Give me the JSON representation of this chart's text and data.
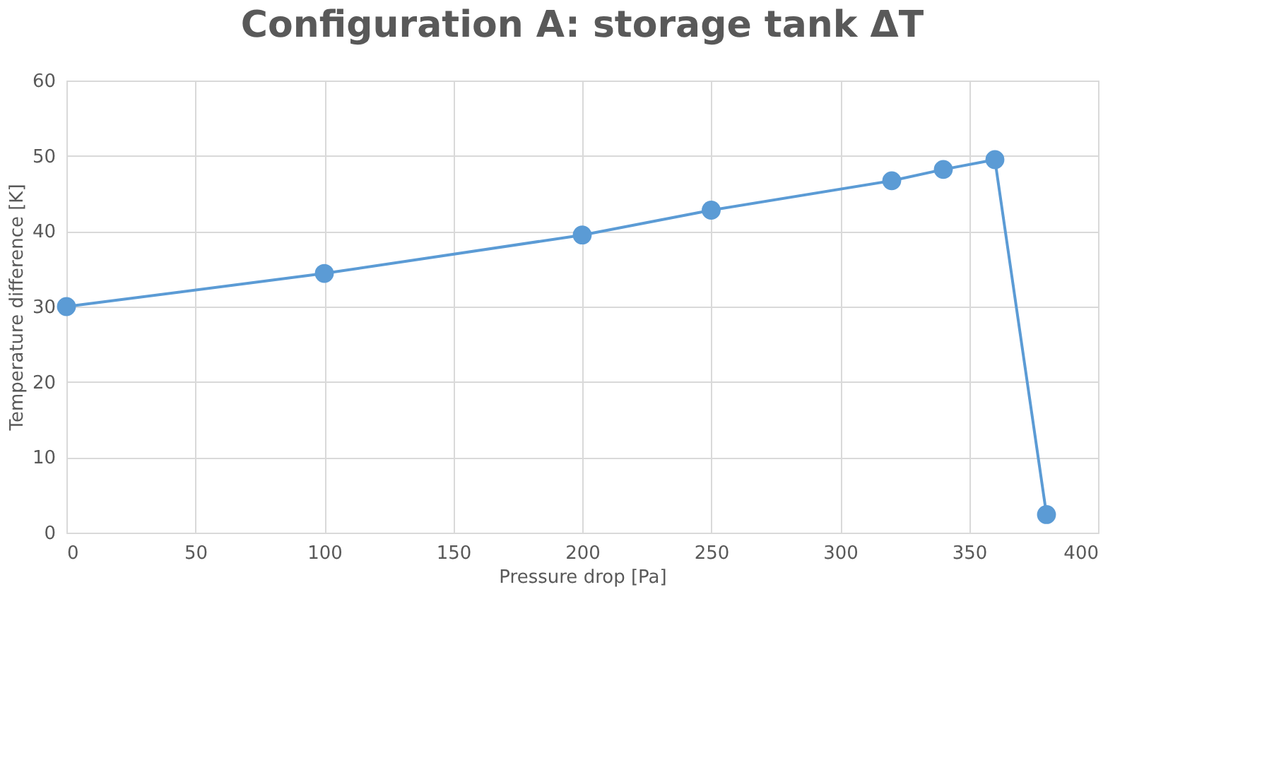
{
  "chart_data": {
    "type": "line",
    "title": "Configuration A: storage tank ΔT",
    "xlabel": "Pressure drop [Pa]",
    "ylabel": "Temperature difference [K]",
    "x": [
      0,
      100,
      200,
      250,
      320,
      340,
      360,
      380
    ],
    "series": [
      {
        "color": "#5b9bd5",
        "values": [
          30,
          34.4,
          39.5,
          42.8,
          46.7,
          48.2,
          49.5,
          2.4
        ]
      }
    ],
    "xlim": [
      0,
      400
    ],
    "xticks": [
      0,
      50,
      100,
      150,
      200,
      250,
      300,
      350,
      400
    ],
    "ylim": [
      0,
      60
    ],
    "yticks": [
      0,
      10,
      20,
      30,
      40,
      50,
      60
    ],
    "grid": true,
    "marker": "circle",
    "line_style": "solid"
  }
}
